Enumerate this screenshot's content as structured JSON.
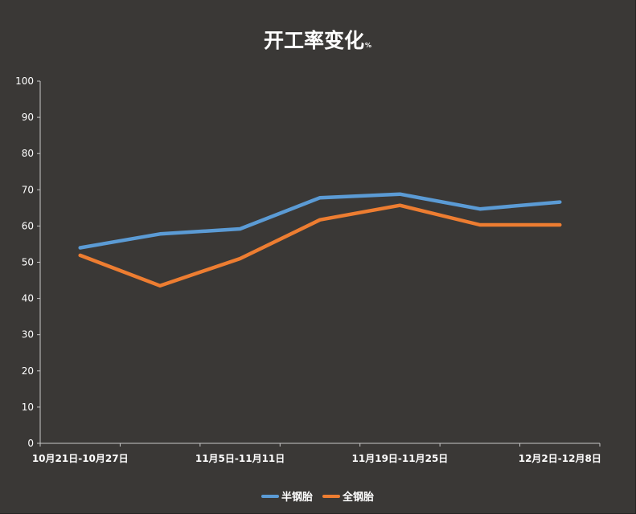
{
  "chart_data": {
    "type": "line",
    "title": "开工率变化",
    "title_unit": "%",
    "categories": [
      "10月21日-10月27日",
      "",
      "11月5日-11月11日",
      "",
      "11月19日-11月25日",
      "",
      "12月2日-12月8日"
    ],
    "series": [
      {
        "name": "半钢胎",
        "color": "#5b9bd5",
        "values": [
          54.0,
          57.8,
          59.2,
          67.8,
          68.8,
          64.7,
          66.6
        ]
      },
      {
        "name": "全钢胎",
        "color": "#ed7d31",
        "values": [
          51.9,
          43.5,
          51.0,
          61.7,
          65.7,
          60.3,
          60.3
        ]
      }
    ],
    "ylim": [
      0,
      100
    ],
    "yticks": [
      0,
      10,
      20,
      30,
      40,
      50,
      60,
      70,
      80,
      90,
      100
    ],
    "grid": false,
    "legend_position": "bottom"
  }
}
